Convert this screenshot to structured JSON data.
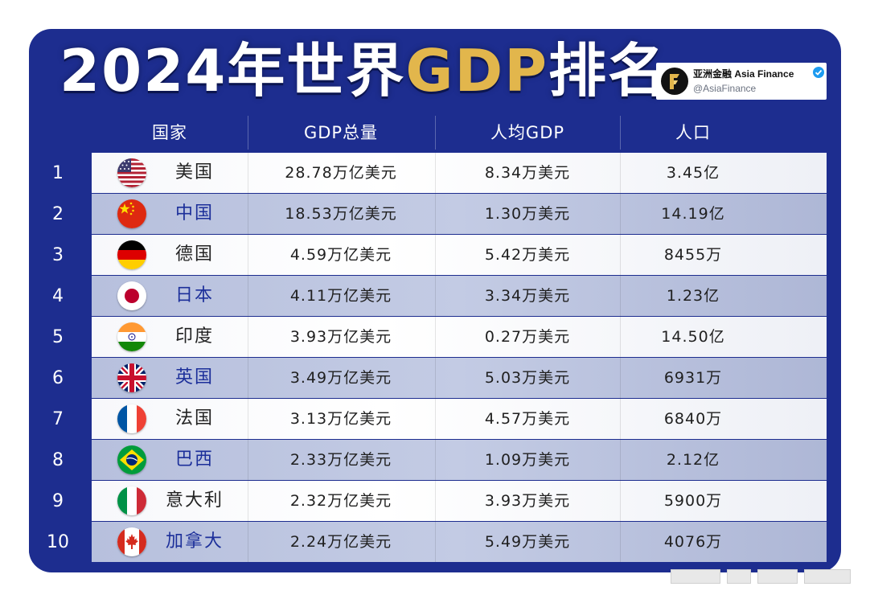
{
  "title": {
    "prefix": "2024年世界",
    "highlight": "GDP",
    "suffix": "排名"
  },
  "brand": {
    "name": "亚洲金融 Asia Finance",
    "handle": "@AsiaFinance",
    "logo_icon": "asia-finance-logo-icon",
    "verified_icon": "verified-check-icon"
  },
  "colors": {
    "frame": "#1d2d8f",
    "highlight": "#e2b64c",
    "row_light": "#f7f8fb",
    "row_dark": "#b7c0dd",
    "country_dark_text": "#1c2f9a"
  },
  "table": {
    "headers": {
      "country": "国家",
      "gdp": "GDP总量",
      "per_capita": "人均GDP",
      "population": "人口"
    },
    "rows": [
      {
        "rank": "1",
        "country": "美国",
        "flag": "us-flag-icon",
        "gdp": "28.78万亿美元",
        "per_capita": "8.34万美元",
        "population": "3.45亿"
      },
      {
        "rank": "2",
        "country": "中国",
        "flag": "china-flag-icon",
        "gdp": "18.53万亿美元",
        "per_capita": "1.30万美元",
        "population": "14.19亿"
      },
      {
        "rank": "3",
        "country": "德国",
        "flag": "germany-flag-icon",
        "gdp": "4.59万亿美元",
        "per_capita": "5.42万美元",
        "population": "8455万"
      },
      {
        "rank": "4",
        "country": "日本",
        "flag": "japan-flag-icon",
        "gdp": "4.11万亿美元",
        "per_capita": "3.34万美元",
        "population": "1.23亿"
      },
      {
        "rank": "5",
        "country": "印度",
        "flag": "india-flag-icon",
        "gdp": "3.93万亿美元",
        "per_capita": "0.27万美元",
        "population": "14.50亿"
      },
      {
        "rank": "6",
        "country": "英国",
        "flag": "uk-flag-icon",
        "gdp": "3.49万亿美元",
        "per_capita": "5.03万美元",
        "population": "6931万"
      },
      {
        "rank": "7",
        "country": "法国",
        "flag": "france-flag-icon",
        "gdp": "3.13万亿美元",
        "per_capita": "4.57万美元",
        "population": "6840万"
      },
      {
        "rank": "8",
        "country": "巴西",
        "flag": "brazil-flag-icon",
        "gdp": "2.33万亿美元",
        "per_capita": "1.09万美元",
        "population": "2.12亿"
      },
      {
        "rank": "9",
        "country": "意大利",
        "flag": "italy-flag-icon",
        "gdp": "2.32万亿美元",
        "per_capita": "3.93万美元",
        "population": "5900万"
      },
      {
        "rank": "10",
        "country": "加拿大",
        "flag": "canada-flag-icon",
        "gdp": "2.24万亿美元",
        "per_capita": "5.49万美元",
        "population": "4076万"
      }
    ]
  }
}
